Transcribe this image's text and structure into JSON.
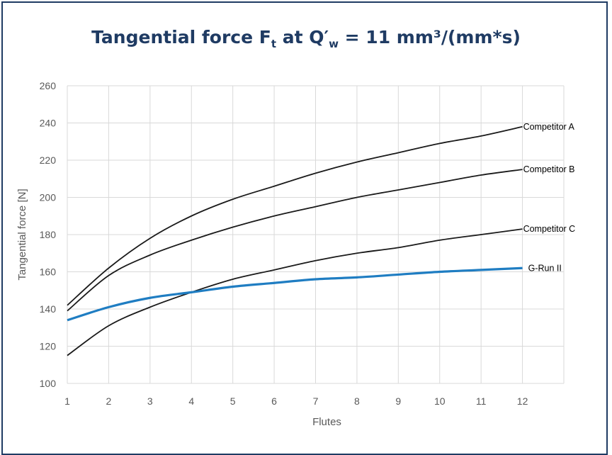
{
  "title": {
    "prefix": "Tangential force F",
    "sub1": "t",
    "mid": " at Q′",
    "sub2": "w",
    "suffix": " = 11 mm³/(mm*s)"
  },
  "chart_data": {
    "type": "line",
    "title": "Tangential force Ft at Q′w = 11 mm³/(mm*s)",
    "xlabel": "Flutes",
    "ylabel": "Tangential force [N]",
    "x": [
      1,
      2,
      3,
      4,
      5,
      6,
      7,
      8,
      9,
      10,
      11,
      12
    ],
    "xlim": [
      1,
      13
    ],
    "ylim": [
      100,
      260
    ],
    "xticks": [
      "1",
      "2",
      "3",
      "4",
      "5",
      "6",
      "7",
      "8",
      "9",
      "10",
      "11",
      "12"
    ],
    "yticks": [
      "100",
      "120",
      "140",
      "160",
      "180",
      "200",
      "220",
      "240",
      "260"
    ],
    "grid": true,
    "series": [
      {
        "name": "Competitor A",
        "color": "#1a1a1a",
        "values": [
          142,
          162,
          178,
          190,
          199,
          206,
          213,
          219,
          224,
          229,
          233,
          238
        ]
      },
      {
        "name": "Competitor B",
        "color": "#1a1a1a",
        "values": [
          139,
          158,
          169,
          177,
          184,
          190,
          195,
          200,
          204,
          208,
          212,
          215
        ]
      },
      {
        "name": "Competitor C",
        "color": "#1a1a1a",
        "values": [
          115,
          131,
          141,
          149,
          156,
          161,
          166,
          170,
          173,
          177,
          180,
          183
        ]
      },
      {
        "name": "G-Run II",
        "color": "#1f7dc2",
        "values": [
          134,
          141,
          146,
          149,
          152,
          154,
          156,
          157,
          158.5,
          160,
          161,
          162
        ]
      }
    ]
  }
}
